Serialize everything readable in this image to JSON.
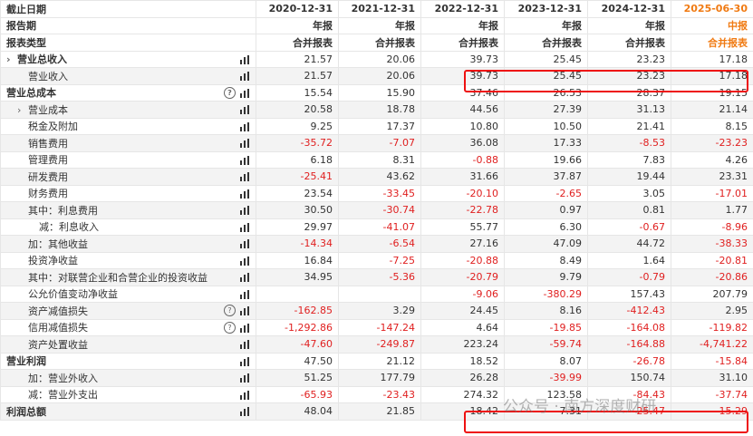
{
  "columns": [
    "2020-12-31",
    "2021-12-31",
    "2022-12-31",
    "2023-12-31",
    "2024-12-31",
    "2025-06-30"
  ],
  "header": [
    {
      "label": "截止日期",
      "values": [
        "2020-12-31",
        "2021-12-31",
        "2022-12-31",
        "2023-12-31",
        "2024-12-31",
        "2025-06-30"
      ]
    },
    {
      "label": "报告期",
      "values": [
        "年报",
        "年报",
        "年报",
        "年报",
        "年报",
        "中报"
      ]
    },
    {
      "label": "报表类型",
      "values": [
        "合并报表",
        "合并报表",
        "合并报表",
        "合并报表",
        "合并报表",
        "合并报表"
      ]
    }
  ],
  "rows": [
    {
      "label": "营业总收入",
      "values": [
        "21.57",
        "20.06",
        "39.73",
        "25.45",
        "23.23",
        "17.18"
      ],
      "bold": true,
      "chevron": true
    },
    {
      "label": "营业收入",
      "values": [
        "21.57",
        "20.06",
        "39.73",
        "25.45",
        "23.23",
        "17.18"
      ],
      "indent": 2
    },
    {
      "label": "营业总成本",
      "values": [
        "15.54",
        "15.90",
        "37.46",
        "26.53",
        "28.37",
        "19.15"
      ],
      "bold": true,
      "help": true
    },
    {
      "label": "营业成本",
      "values": [
        "20.58",
        "18.78",
        "44.56",
        "27.39",
        "31.13",
        "21.14"
      ],
      "chevron": true,
      "indent": 1
    },
    {
      "label": "税金及附加",
      "values": [
        "9.25",
        "17.37",
        "10.80",
        "10.50",
        "21.41",
        "8.15"
      ],
      "indent": 2
    },
    {
      "label": "销售费用",
      "values": [
        "-35.72",
        "-7.07",
        "36.08",
        "17.33",
        "-8.53",
        "-23.23"
      ],
      "indent": 2
    },
    {
      "label": "管理费用",
      "values": [
        "6.18",
        "8.31",
        "-0.88",
        "19.66",
        "7.83",
        "4.26"
      ],
      "indent": 2
    },
    {
      "label": "研发费用",
      "values": [
        "-25.41",
        "43.62",
        "31.66",
        "37.87",
        "19.44",
        "23.31"
      ],
      "indent": 2
    },
    {
      "label": "财务费用",
      "values": [
        "23.54",
        "-33.45",
        "-20.10",
        "-2.65",
        "3.05",
        "-17.01"
      ],
      "indent": 2
    },
    {
      "label": "其中：利息费用",
      "values": [
        "30.50",
        "-30.74",
        "-22.78",
        "0.97",
        "0.81",
        "1.77"
      ],
      "indent": 2
    },
    {
      "label": "减：利息收入",
      "values": [
        "29.97",
        "-41.07",
        "55.77",
        "6.30",
        "-0.67",
        "-8.96"
      ],
      "indent": 3
    },
    {
      "label": "加：其他收益",
      "values": [
        "-14.34",
        "-6.54",
        "27.16",
        "47.09",
        "44.72",
        "-38.33"
      ],
      "indent": 2
    },
    {
      "label": "投资净收益",
      "values": [
        "16.84",
        "-7.25",
        "-20.88",
        "8.49",
        "1.64",
        "-20.81"
      ],
      "indent": 2
    },
    {
      "label": "其中：对联营企业和合营企业的投资收益",
      "values": [
        "34.95",
        "-5.36",
        "-20.79",
        "9.79",
        "-0.79",
        "-20.86"
      ],
      "indent": 2
    },
    {
      "label": "公允价值变动净收益",
      "values": [
        "",
        "",
        "-9.06",
        "-380.29",
        "157.43",
        "207.79"
      ],
      "indent": 2
    },
    {
      "label": "资产减值损失",
      "values": [
        "-162.85",
        "3.29",
        "24.45",
        "8.16",
        "-412.43",
        "2.95"
      ],
      "indent": 2,
      "help": true
    },
    {
      "label": "信用减值损失",
      "values": [
        "-1,292.86",
        "-147.24",
        "4.64",
        "-19.85",
        "-164.08",
        "-119.82"
      ],
      "indent": 2,
      "help": true
    },
    {
      "label": "资产处置收益",
      "values": [
        "-47.60",
        "-249.87",
        "223.24",
        "-59.74",
        "-164.88",
        "-4,741.22"
      ],
      "indent": 2
    },
    {
      "label": "营业利润",
      "values": [
        "47.50",
        "21.12",
        "18.52",
        "8.07",
        "-26.78",
        "-15.84"
      ],
      "bold": true
    },
    {
      "label": "加：营业外收入",
      "values": [
        "51.25",
        "177.79",
        "26.28",
        "-39.99",
        "150.74",
        "31.10"
      ],
      "indent": 2
    },
    {
      "label": "减：营业外支出",
      "values": [
        "-65.93",
        "-23.43",
        "274.32",
        "123.58",
        "-84.43",
        "-37.74"
      ],
      "indent": 2
    },
    {
      "label": "利润总额",
      "values": [
        "48.04",
        "21.85",
        "18.42",
        "7.31",
        "-25.47",
        "-15.29"
      ],
      "bold": true
    }
  ],
  "watermark": "公众号 · 南方深度财研",
  "colors": {
    "negative": "#e02020",
    "accent": "#f07a12",
    "highlight_box": "#e11111"
  }
}
